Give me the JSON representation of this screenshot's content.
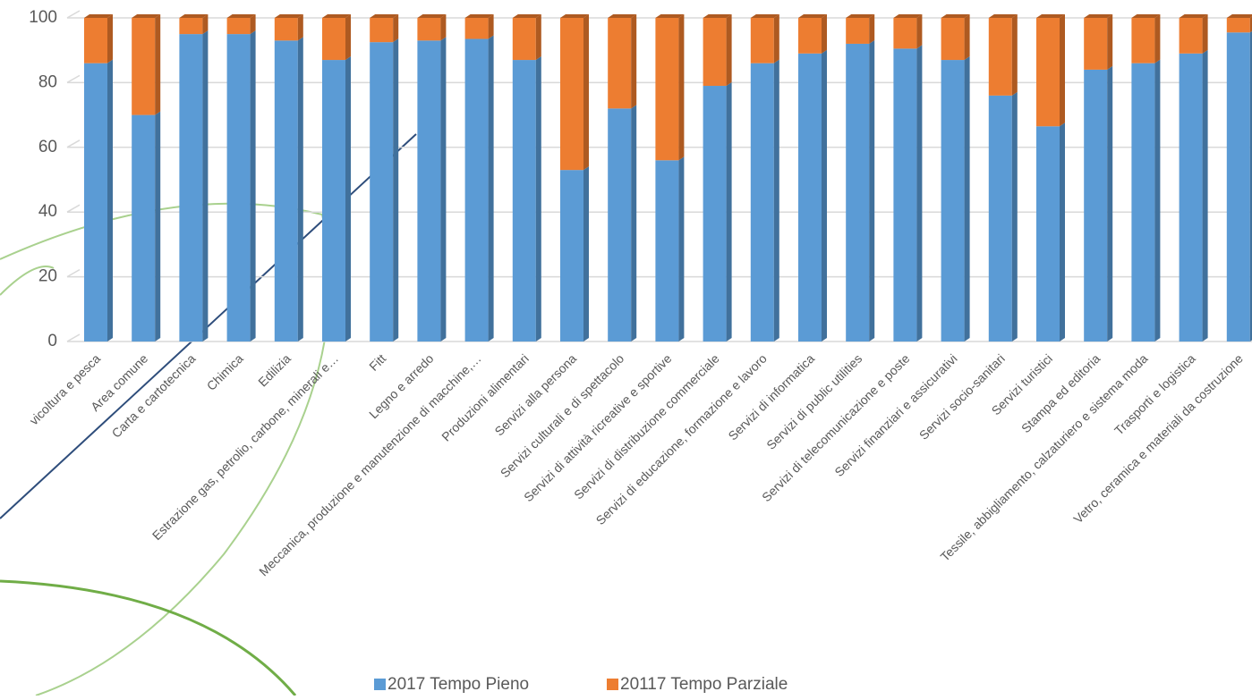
{
  "chart_data": {
    "type": "stacked_bar",
    "categories": [
      "vicoltura e pesca",
      "Area comune",
      "Carta e cartotecnica",
      "Chimica",
      "Edilizia",
      "Estrazione gas, petrolio, carbone, minerali e…",
      "Fitt",
      "Legno e arredo",
      "Meccanica, produzione e manutenzione di macchine,…",
      "Produzioni alimentari",
      "Servizi alla persona",
      "Servizi culturali e di spettacolo",
      "Servizi di attività ricreative e sportive",
      "Servizi di distribuzione commerciale",
      "Servizi di educazione, formazione e lavoro",
      "Servizi di informatica",
      "Servizi di public utilities",
      "Servizi di telecomunicazione e poste",
      "Servizi finanziari e assicurativi",
      "Servizi socio-sanitari",
      "Servizi turistici",
      "Stampa ed editoria",
      "Tessile, abbigliamento, calzaturiero e sistema moda",
      "Trasporti e logistica",
      "Vetro, ceramica e materiali da costruzione"
    ],
    "series": [
      {
        "name": "2017 Tempo Pieno",
        "color": "#5b9bd5",
        "side": "#41719c",
        "values": [
          86,
          70,
          95,
          95,
          93,
          87,
          92.5,
          93,
          93.5,
          87,
          53,
          72,
          56,
          79,
          86,
          89,
          92,
          90.5,
          87,
          76,
          66.5,
          84,
          86,
          89,
          95.5
        ]
      },
      {
        "name": "20117 Tempo Parziale",
        "color": "#ed7d31",
        "side": "#ae5a21",
        "values": [
          14,
          30,
          5,
          5,
          7,
          13,
          7.5,
          7,
          6.5,
          13,
          47,
          28,
          44,
          21,
          14,
          11,
          8,
          9.5,
          13,
          24,
          33.5,
          16,
          14,
          11,
          4.5
        ]
      }
    ],
    "ylim": [
      0,
      100
    ],
    "yticks": [
      0,
      20,
      40,
      60,
      80,
      100
    ],
    "grid": true,
    "legend": "bottom"
  }
}
